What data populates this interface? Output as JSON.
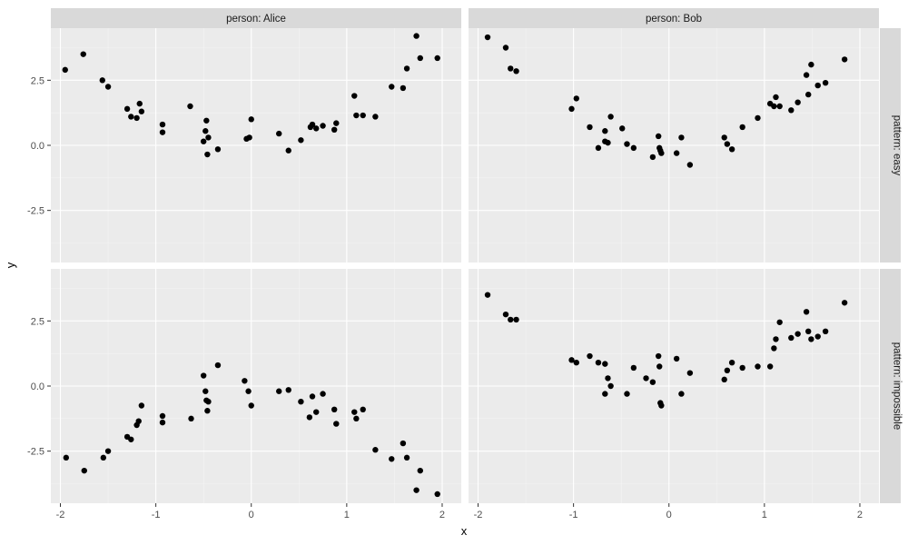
{
  "chart_data": {
    "type": "scatter",
    "title": "",
    "xlabel": "x",
    "ylabel": "y",
    "xlim": [
      -2.1,
      2.2
    ],
    "ylim": [
      -4.5,
      4.5
    ],
    "x_ticks": [
      -2,
      -1,
      0,
      1,
      2
    ],
    "x_tick_labels": [
      "-2",
      "-1",
      "0",
      "1",
      "2"
    ],
    "y_ticks": [
      2.5,
      0,
      -2.5
    ],
    "y_tick_labels": [
      "2.5",
      "0.0",
      "-2.5"
    ],
    "grid": true,
    "legend": "none",
    "point_color": "#000000",
    "panel_background": "#ebebeb",
    "strip_background": "#d9d9d9",
    "columns": [
      "person: Alice",
      "person: Bob"
    ],
    "rows": [
      "pattern: easy",
      "pattern: impossible"
    ],
    "panels": [
      {
        "column": 0,
        "row": 0,
        "points": [
          [
            -1.95,
            2.9
          ],
          [
            -1.76,
            3.5
          ],
          [
            -1.56,
            2.5
          ],
          [
            -1.5,
            2.25
          ],
          [
            -1.3,
            1.4
          ],
          [
            -1.26,
            1.1
          ],
          [
            -1.2,
            1.05
          ],
          [
            -1.17,
            1.6
          ],
          [
            -1.15,
            1.3
          ],
          [
            -0.93,
            0.8
          ],
          [
            -0.93,
            0.5
          ],
          [
            -0.64,
            1.5
          ],
          [
            -0.5,
            0.15
          ],
          [
            -0.48,
            0.55
          ],
          [
            -0.47,
            0.95
          ],
          [
            -0.46,
            -0.35
          ],
          [
            -0.45,
            0.3
          ],
          [
            -0.35,
            -0.15
          ],
          [
            -0.05,
            0.25
          ],
          [
            -0.02,
            0.3
          ],
          [
            0.0,
            1.0
          ],
          [
            0.29,
            0.45
          ],
          [
            0.39,
            -0.2
          ],
          [
            0.52,
            0.2
          ],
          [
            0.62,
            0.7
          ],
          [
            0.64,
            0.8
          ],
          [
            0.68,
            0.65
          ],
          [
            0.75,
            0.75
          ],
          [
            0.87,
            0.6
          ],
          [
            0.89,
            0.85
          ],
          [
            1.08,
            1.9
          ],
          [
            1.1,
            1.15
          ],
          [
            1.17,
            1.15
          ],
          [
            1.3,
            1.1
          ],
          [
            1.47,
            2.25
          ],
          [
            1.59,
            2.2
          ],
          [
            1.63,
            2.95
          ],
          [
            1.73,
            4.2
          ],
          [
            1.77,
            3.35
          ],
          [
            1.95,
            3.35
          ]
        ]
      },
      {
        "column": 1,
        "row": 0,
        "points": [
          [
            -1.9,
            4.15
          ],
          [
            -1.71,
            3.75
          ],
          [
            -1.66,
            2.95
          ],
          [
            -1.6,
            2.85
          ],
          [
            -1.02,
            1.4
          ],
          [
            -0.97,
            1.8
          ],
          [
            -0.83,
            0.7
          ],
          [
            -0.74,
            -0.1
          ],
          [
            -0.67,
            0.55
          ],
          [
            -0.67,
            0.15
          ],
          [
            -0.64,
            0.1
          ],
          [
            -0.61,
            1.1
          ],
          [
            -0.49,
            0.65
          ],
          [
            -0.44,
            0.05
          ],
          [
            -0.37,
            -0.1
          ],
          [
            -0.17,
            -0.45
          ],
          [
            -0.11,
            0.35
          ],
          [
            -0.1,
            -0.1
          ],
          [
            -0.09,
            -0.2
          ],
          [
            -0.08,
            -0.3
          ],
          [
            0.08,
            -0.3
          ],
          [
            0.13,
            0.3
          ],
          [
            0.22,
            -0.75
          ],
          [
            0.58,
            0.3
          ],
          [
            0.61,
            0.05
          ],
          [
            0.66,
            -0.15
          ],
          [
            0.77,
            0.7
          ],
          [
            0.93,
            1.05
          ],
          [
            1.06,
            1.6
          ],
          [
            1.1,
            1.5
          ],
          [
            1.12,
            1.85
          ],
          [
            1.16,
            1.5
          ],
          [
            1.28,
            1.35
          ],
          [
            1.35,
            1.65
          ],
          [
            1.44,
            2.7
          ],
          [
            1.46,
            1.95
          ],
          [
            1.49,
            3.1
          ],
          [
            1.56,
            2.3
          ],
          [
            1.64,
            2.4
          ],
          [
            1.84,
            3.3
          ]
        ]
      },
      {
        "column": 0,
        "row": 1,
        "points": [
          [
            -1.94,
            -2.75
          ],
          [
            -1.75,
            -3.25
          ],
          [
            -1.55,
            -2.75
          ],
          [
            -1.5,
            -2.5
          ],
          [
            -1.3,
            -1.95
          ],
          [
            -1.26,
            -2.05
          ],
          [
            -1.2,
            -1.5
          ],
          [
            -1.18,
            -1.35
          ],
          [
            -1.15,
            -0.75
          ],
          [
            -0.93,
            -1.15
          ],
          [
            -0.93,
            -1.4
          ],
          [
            -0.63,
            -1.25
          ],
          [
            -0.5,
            0.4
          ],
          [
            -0.48,
            -0.2
          ],
          [
            -0.47,
            -0.55
          ],
          [
            -0.46,
            -0.95
          ],
          [
            -0.45,
            -0.6
          ],
          [
            -0.35,
            0.8
          ],
          [
            -0.07,
            0.2
          ],
          [
            -0.03,
            -0.2
          ],
          [
            0.0,
            -0.75
          ],
          [
            0.29,
            -0.2
          ],
          [
            0.39,
            -0.15
          ],
          [
            0.52,
            -0.6
          ],
          [
            0.61,
            -1.2
          ],
          [
            0.64,
            -0.4
          ],
          [
            0.68,
            -1.0
          ],
          [
            0.75,
            -0.3
          ],
          [
            0.87,
            -0.9
          ],
          [
            0.89,
            -1.45
          ],
          [
            1.08,
            -1.0
          ],
          [
            1.1,
            -1.25
          ],
          [
            1.17,
            -0.9
          ],
          [
            1.3,
            -2.45
          ],
          [
            1.47,
            -2.8
          ],
          [
            1.59,
            -2.2
          ],
          [
            1.63,
            -2.75
          ],
          [
            1.73,
            -4.0
          ],
          [
            1.77,
            -3.25
          ],
          [
            1.95,
            -4.15
          ]
        ]
      },
      {
        "column": 1,
        "row": 1,
        "points": [
          [
            -1.9,
            3.5
          ],
          [
            -1.71,
            2.75
          ],
          [
            -1.66,
            2.55
          ],
          [
            -1.6,
            2.55
          ],
          [
            -1.02,
            1.0
          ],
          [
            -0.97,
            0.9
          ],
          [
            -0.83,
            1.15
          ],
          [
            -0.74,
            0.9
          ],
          [
            -0.67,
            0.85
          ],
          [
            -0.67,
            -0.3
          ],
          [
            -0.64,
            0.3
          ],
          [
            -0.61,
            0.0
          ],
          [
            -0.44,
            -0.3
          ],
          [
            -0.37,
            0.7
          ],
          [
            -0.24,
            0.3
          ],
          [
            -0.17,
            0.15
          ],
          [
            -0.11,
            1.15
          ],
          [
            -0.1,
            0.75
          ],
          [
            -0.09,
            -0.65
          ],
          [
            -0.08,
            -0.75
          ],
          [
            0.08,
            1.05
          ],
          [
            0.13,
            -0.3
          ],
          [
            0.22,
            0.5
          ],
          [
            0.58,
            0.25
          ],
          [
            0.61,
            0.6
          ],
          [
            0.66,
            0.9
          ],
          [
            0.77,
            0.7
          ],
          [
            0.93,
            0.75
          ],
          [
            1.06,
            0.75
          ],
          [
            1.1,
            1.45
          ],
          [
            1.12,
            1.8
          ],
          [
            1.16,
            2.45
          ],
          [
            1.28,
            1.85
          ],
          [
            1.35,
            2.0
          ],
          [
            1.44,
            2.85
          ],
          [
            1.46,
            2.1
          ],
          [
            1.49,
            1.8
          ],
          [
            1.56,
            1.9
          ],
          [
            1.64,
            2.1
          ],
          [
            1.84,
            3.2
          ]
        ]
      }
    ]
  }
}
